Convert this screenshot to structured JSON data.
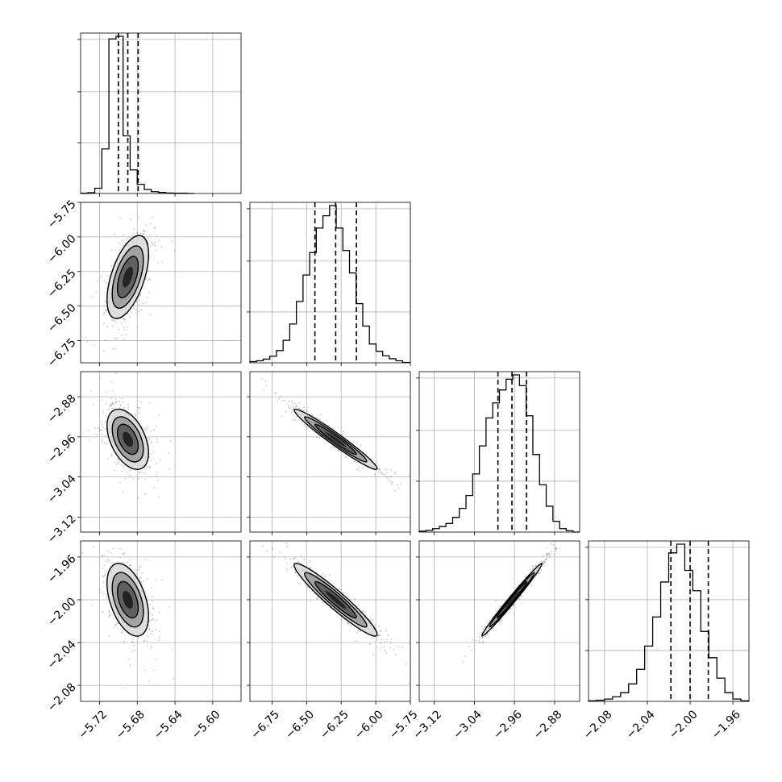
{
  "chart_data": {
    "type": "corner",
    "grid": true,
    "n_params": 4,
    "params": [
      {
        "range": [
          -5.74,
          -5.57
        ],
        "ticks": [
          -5.72,
          -5.68,
          -5.64,
          -5.6
        ],
        "tick_labels": [
          "−5.72",
          "−5.68",
          "−5.64",
          "−5.60"
        ],
        "quantiles": [
          -5.7,
          -5.69,
          -5.679
        ]
      },
      {
        "range": [
          -6.91,
          -5.75
        ],
        "ticks": [
          -6.75,
          -6.5,
          -6.25,
          -6.0,
          -5.75
        ],
        "tick_labels": [
          "−6.75",
          "−6.50",
          "−6.25",
          "−6.00",
          "−5.75"
        ],
        "quantiles": [
          -6.44,
          -6.29,
          -6.14
        ]
      },
      {
        "range": [
          -3.15,
          -2.83
        ],
        "ticks": [
          -3.12,
          -3.04,
          -2.96,
          -2.88
        ],
        "tick_labels": [
          "−3.12",
          "−3.04",
          "−2.96",
          "−2.88"
        ],
        "quantiles": [
          -2.993,
          -2.965,
          -2.936
        ]
      },
      {
        "range": [
          -2.095,
          -1.945
        ],
        "ticks": [
          -2.08,
          -2.04,
          -2.0,
          -1.96
        ],
        "tick_labels": [
          "−2.08",
          "−2.04",
          "−2.00",
          "−1.96"
        ],
        "quantiles": [
          -2.018,
          -2.0,
          -1.983
        ]
      }
    ],
    "histograms": [
      {
        "param": 0,
        "edges": [
          -5.74,
          -5.7325,
          -5.725,
          -5.7175,
          -5.71,
          -5.7025,
          -5.695,
          -5.6875,
          -5.68,
          -5.6725,
          -5.665,
          -5.6575,
          -5.65,
          -5.6425,
          -5.635,
          -5.6275,
          -5.62
        ],
        "counts": [
          1,
          3,
          20,
          170,
          590,
          600,
          220,
          90,
          35,
          15,
          7,
          4,
          2,
          1,
          1,
          0
        ]
      },
      {
        "param": 1,
        "edges": [
          -6.91,
          -6.862,
          -6.814,
          -6.766,
          -6.718,
          -6.67,
          -6.622,
          -6.574,
          -6.526,
          -6.478,
          -6.43,
          -6.382,
          -6.334,
          -6.286,
          -6.238,
          -6.19,
          -6.142,
          -6.094,
          -6.046,
          -5.998,
          -5.95,
          -5.902,
          -5.854,
          -5.806,
          -5.758
        ],
        "counts": [
          3,
          5,
          9,
          16,
          30,
          55,
          95,
          150,
          215,
          270,
          330,
          360,
          385,
          330,
          275,
          220,
          145,
          90,
          46,
          28,
          17,
          10,
          5,
          1
        ]
      },
      {
        "param": 2,
        "edges": [
          -3.15,
          -3.1367,
          -3.1233,
          -3.11,
          -3.0967,
          -3.0833,
          -3.07,
          -3.0567,
          -3.0433,
          -3.03,
          -3.0167,
          -3.0033,
          -2.99,
          -2.9767,
          -2.9633,
          -2.95,
          -2.9367,
          -2.9233,
          -2.91,
          -2.8967,
          -2.8833,
          -2.87,
          -2.8567,
          -2.8433,
          -2.83
        ],
        "counts": [
          2,
          4,
          8,
          13,
          20,
          34,
          55,
          85,
          135,
          200,
          265,
          300,
          330,
          355,
          365,
          340,
          270,
          180,
          110,
          60,
          25,
          8,
          3,
          0
        ]
      },
      {
        "param": 3,
        "edges": [
          -2.095,
          -2.0875,
          -2.08,
          -2.0725,
          -2.065,
          -2.0575,
          -2.05,
          -2.0425,
          -2.035,
          -2.0275,
          -2.02,
          -2.0125,
          -2.005,
          -1.9975,
          -1.99,
          -1.9825,
          -1.975,
          -1.9675,
          -1.96,
          -1.9525,
          -1.945
        ],
        "counts": [
          1,
          2,
          4,
          8,
          15,
          30,
          55,
          95,
          145,
          205,
          255,
          270,
          225,
          190,
          120,
          75,
          40,
          15,
          4,
          1
        ]
      }
    ],
    "panels_2d": [
      {
        "x_param": 0,
        "y_param": 1,
        "center": [
          -5.69,
          -6.29
        ],
        "sd": [
          0.011,
          0.15
        ],
        "corr": 0.55
      },
      {
        "x_param": 0,
        "y_param": 2,
        "center": [
          -5.69,
          -2.965
        ],
        "sd": [
          0.011,
          0.03
        ],
        "corr": -0.45
      },
      {
        "x_param": 1,
        "y_param": 2,
        "center": [
          -6.29,
          -2.965
        ],
        "sd": [
          0.15,
          0.03
        ],
        "corr": -0.97
      },
      {
        "x_param": 0,
        "y_param": 3,
        "center": [
          -5.69,
          -2.0
        ],
        "sd": [
          0.011,
          0.017
        ],
        "corr": -0.45
      },
      {
        "x_param": 1,
        "y_param": 3,
        "center": [
          -6.29,
          -2.0
        ],
        "sd": [
          0.15,
          0.017
        ],
        "corr": -0.95
      },
      {
        "x_param": 2,
        "y_param": 3,
        "center": [
          -2.965,
          -2.0
        ],
        "sd": [
          0.03,
          0.017
        ],
        "corr": 0.99
      }
    ],
    "contour_levels": [
      0.5,
      1.0,
      1.5,
      2.0
    ]
  }
}
